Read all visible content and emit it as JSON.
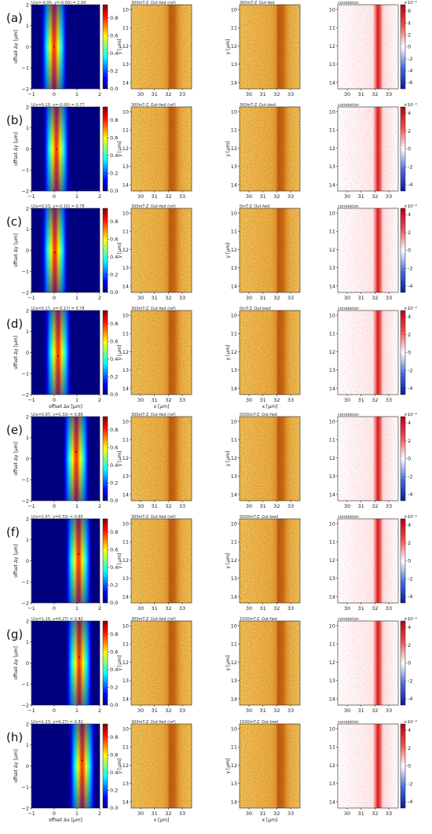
{
  "figure": {
    "rows": [
      {
        "letter": "(a)",
        "xcorr_title": "U(x=-0.00, y=-0.00) = 1.00",
        "peak_x": 0.0,
        "peak_y": 0.0,
        "sigma_x": 0.22,
        "ref_title": "300mT-Z_Out-fwd (ref)",
        "cmp_title": "300mT-Z_Out-fwd",
        "corr_title": "correlation",
        "corr_ticks": [
          "6",
          "4",
          "2",
          "0",
          "-2",
          "-4",
          "-6"
        ],
        "corr_multiplier": "×10⁻⁹",
        "show_x_labels": false
      },
      {
        "letter": "(b)",
        "xcorr_title": "U(x=0.10, y=-0.00) = 0.77",
        "peak_x": 0.1,
        "peak_y": 0.0,
        "sigma_x": 0.22,
        "ref_title": "300mT-Z_Out-fwd (ref)",
        "cmp_title": "300mT-Z_Out-bwd",
        "corr_title": "correlation",
        "corr_ticks": [
          "4",
          "2",
          "0",
          "-2",
          "-4"
        ],
        "corr_multiplier": "×10⁻⁹",
        "show_x_labels": false
      },
      {
        "letter": "(c)",
        "xcorr_title": "U(x=0.03, y=-0.10) = 0.78",
        "peak_x": 0.03,
        "peak_y": -0.1,
        "sigma_x": 0.22,
        "ref_title": "300mT-Z_Out-fwd (ref)",
        "cmp_title": "0mT-Z_Out-fwd",
        "corr_title": "correlation",
        "corr_ticks": [
          "4",
          "2",
          "0",
          "-2",
          "-4"
        ],
        "corr_multiplier": "×10⁻⁹",
        "show_x_labels": false
      },
      {
        "letter": "(d)",
        "xcorr_title": "U(x=0.17, y=-0.17) = 0.78",
        "peak_x": 0.17,
        "peak_y": -0.17,
        "sigma_x": 0.22,
        "ref_title": "300mT-Z_Out-fwd (ref)",
        "cmp_title": "0mT-Z_Out-bwd",
        "corr_title": "correlation",
        "corr_ticks": [
          "4",
          "2",
          "0",
          "-2",
          "-4"
        ],
        "corr_multiplier": "×10⁻⁹",
        "show_x_labels": true
      },
      {
        "letter": "(e)",
        "xcorr_title": "U(x=0.97, y=0.33) = 0.86",
        "peak_x": 0.97,
        "peak_y": 0.33,
        "sigma_x": 0.22,
        "ref_title": "300mT-Z_Out-fwd (ref)",
        "cmp_title": "5000mT-Z_Out-fwd",
        "corr_title": "correlation",
        "corr_ticks": [
          "4",
          "2",
          "0",
          "-2",
          "-4"
        ],
        "corr_multiplier": "×10⁻⁹",
        "show_x_labels": false
      },
      {
        "letter": "(f)",
        "xcorr_title": "U(x=1.07, y=0.33) = 0.85",
        "peak_x": 1.07,
        "peak_y": 0.33,
        "sigma_x": 0.22,
        "ref_title": "300mT-Z_Out-fwd (ref)",
        "cmp_title": "5000mT-Z_Out-bwd",
        "corr_title": "correlation",
        "corr_ticks": [
          "4",
          "2",
          "0",
          "-2",
          "-4"
        ],
        "corr_multiplier": "×10⁻⁹",
        "show_x_labels": false
      },
      {
        "letter": "(g)",
        "xcorr_title": "U(x=1.10, y=0.27) = 0.82",
        "peak_x": 1.1,
        "peak_y": 0.27,
        "sigma_x": 0.22,
        "ref_title": "300mT-Z_Out-fwd (ref)",
        "cmp_title": "1500mT-Z_Out-fwd",
        "corr_title": "correlation",
        "corr_ticks": [
          "4",
          "2",
          "0",
          "-2",
          "-4"
        ],
        "corr_multiplier": "×10⁻⁹",
        "show_x_labels": false
      },
      {
        "letter": "(h)",
        "xcorr_title": "U(x=1.23, y=0.27) = 0.82",
        "peak_x": 1.23,
        "peak_y": 0.27,
        "sigma_x": 0.22,
        "ref_title": "300mT-Z_Out-fwd (ref)",
        "cmp_title": "1500mT-Z_Out-bwd",
        "corr_title": "correlation",
        "corr_ticks": [
          "4",
          "2",
          "0",
          "-2",
          "-4"
        ],
        "corr_multiplier": "×10⁻⁹",
        "show_x_labels": true
      }
    ],
    "xcorr_axis": {
      "xlabel": "offset Δx [μm]",
      "ylabel": "offset Δy [μm]",
      "xticks": [
        "−1",
        "0",
        "1",
        "2"
      ],
      "yticks": [
        "2",
        "1",
        "0",
        "−1",
        "−2"
      ],
      "xlim": [
        -1,
        2
      ],
      "ylim": [
        -2,
        2
      ]
    },
    "xcorr_colorbar": {
      "ticks": [
        "0.8",
        "0.6",
        "0.4",
        "0.2",
        "0.0"
      ]
    },
    "image_axis": {
      "xlabel": "x [μm]",
      "ylabel": "y [μm]",
      "xticks": [
        "30",
        "31",
        "32",
        "33"
      ],
      "yticks": [
        "10",
        "11",
        "12",
        "13",
        "14"
      ]
    },
    "colors": {
      "jet": [
        "#00007f",
        "#0000ff",
        "#007fff",
        "#00ffff",
        "#7fff7f",
        "#ffff00",
        "#ff7f00",
        "#ff0000",
        "#7f0000"
      ],
      "afm_light": "#f6c45a",
      "afm_mid": "#e8962a",
      "afm_dark": "#b8500c",
      "corr_pos": "#b40014",
      "corr_neg": "#0a1aa0"
    }
  }
}
